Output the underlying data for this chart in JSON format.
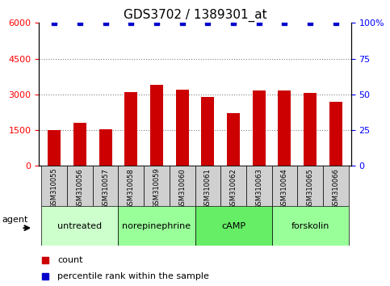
{
  "title": "GDS3702 / 1389301_at",
  "categories": [
    "GSM310055",
    "GSM310056",
    "GSM310057",
    "GSM310058",
    "GSM310059",
    "GSM310060",
    "GSM310061",
    "GSM310062",
    "GSM310063",
    "GSM310064",
    "GSM310065",
    "GSM310066"
  ],
  "counts": [
    1500,
    1800,
    1550,
    3100,
    3400,
    3200,
    2900,
    2200,
    3150,
    3150,
    3050,
    2700
  ],
  "percentiles": [
    100,
    100,
    100,
    100,
    100,
    100,
    100,
    100,
    100,
    100,
    100,
    100
  ],
  "bar_color": "#cc0000",
  "dot_color": "#0000cc",
  "ylim_left": [
    0,
    6000
  ],
  "ylim_right": [
    0,
    100
  ],
  "yticks_left": [
    0,
    1500,
    3000,
    4500,
    6000
  ],
  "yticks_right": [
    0,
    25,
    50,
    75,
    100
  ],
  "groups": [
    {
      "label": "untreated",
      "start": 0,
      "end": 3
    },
    {
      "label": "norepinephrine",
      "start": 3,
      "end": 6
    },
    {
      "label": "cAMP",
      "start": 6,
      "end": 9
    },
    {
      "label": "forskolin",
      "start": 9,
      "end": 12
    }
  ],
  "group_colors": [
    "#ccffcc",
    "#99ff99",
    "#66ff66",
    "#99ff99"
  ],
  "agent_label": "agent",
  "legend_count_label": "count",
  "legend_percentile_label": "percentile rank within the sample",
  "tick_label_fontsize": 7,
  "title_fontsize": 11
}
